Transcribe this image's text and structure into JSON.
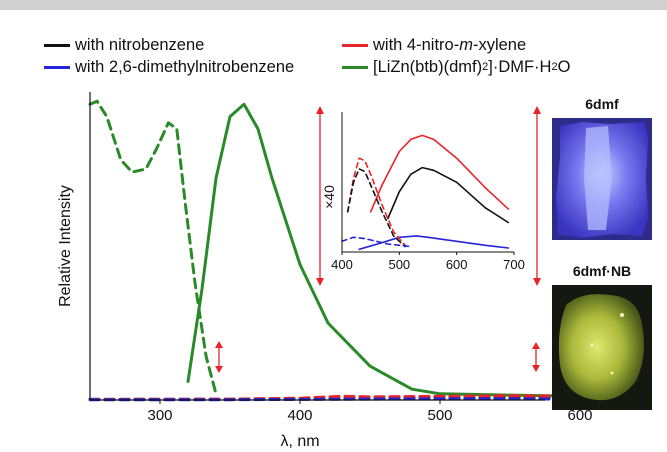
{
  "legend": [
    {
      "label_pre": "with nitrobenzene",
      "label_italic": "",
      "label_post": "",
      "color": "#111111"
    },
    {
      "label_pre": "with 4-nitro-",
      "label_italic": "m",
      "label_post": "-xylene",
      "color": "#e8232a"
    },
    {
      "label_pre": "with 2,6-dimethylnitrobenzene",
      "label_italic": "",
      "label_post": "",
      "color": "#2424d8"
    },
    {
      "label_pre": "[LiZn(btb)(dmf)",
      "sub1": "2",
      "mid": "]·DMF·H",
      "sub2": "2",
      "label_post": "O",
      "color": "#2a8a2a"
    }
  ],
  "photos": [
    {
      "label": "6dmf"
    },
    {
      "label": "6dmf·NB"
    }
  ],
  "colors": {
    "green": "#2a8a2a",
    "red": "#e8232a",
    "blue": "#2424d8",
    "black": "#111111"
  },
  "chart_data": [
    {
      "type": "line",
      "xlabel": "λ, nm",
      "ylabel": "Relative Intensity",
      "xlim": [
        250,
        650
      ],
      "ylim": [
        0,
        100
      ],
      "xticks": [
        300,
        400,
        500,
        600
      ],
      "grid": false,
      "series": [
        {
          "name": "[LiZn(btb)(dmf)2]·DMF·H2O emission",
          "color": "#2a8a2a",
          "dash": false,
          "x": [
            320,
            330,
            340,
            350,
            360,
            370,
            380,
            400,
            420,
            450,
            480,
            500,
            550,
            600,
            650
          ],
          "y": [
            6,
            36,
            72,
            92,
            96,
            88,
            72,
            44,
            25,
            11,
            3.5,
            2,
            1.6,
            1.2,
            1
          ]
        },
        {
          "name": "[LiZn(btb)(dmf)2]·DMF·H2O excitation",
          "color": "#2a8a2a",
          "dash": true,
          "x": [
            250,
            255,
            262,
            272,
            280,
            290,
            298,
            306,
            312,
            318,
            325,
            333,
            340
          ],
          "y": [
            96,
            97,
            92,
            78,
            74,
            75,
            82,
            90,
            88,
            64,
            38,
            14,
            2
          ]
        },
        {
          "name": "with nitrobenzene",
          "color": "#111111",
          "dash": true,
          "x": [
            250,
            350,
            400,
            450,
            500,
            550,
            600,
            650
          ],
          "y": [
            0.2,
            0.2,
            0.3,
            0.6,
            0.8,
            0.8,
            0.6,
            0.4
          ]
        },
        {
          "name": "with 4-nitro-m-xylene",
          "color": "#e8232a",
          "dash": true,
          "x": [
            250,
            350,
            400,
            430,
            450,
            500,
            550,
            600,
            650
          ],
          "y": [
            0.2,
            0.3,
            0.6,
            1.2,
            1.0,
            1.2,
            1.4,
            1.2,
            0.8
          ]
        },
        {
          "name": "with 2,6-dimethylnitrobenzene",
          "color": "#2424d8",
          "dash": true,
          "x": [
            250,
            350,
            400,
            450,
            500,
            550,
            600,
            650
          ],
          "y": [
            0.1,
            0.1,
            0.2,
            0.3,
            0.4,
            0.4,
            0.3,
            0.2
          ]
        }
      ]
    },
    {
      "type": "line",
      "inset": true,
      "ylabel": "×40",
      "xlim": [
        400,
        700
      ],
      "ylim": [
        0,
        100
      ],
      "xticks": [
        400,
        500,
        600,
        700
      ],
      "series": [
        {
          "name": "with 4-nitro-m-xylene emission",
          "color": "#e8232a",
          "dash": false,
          "x": [
            450,
            470,
            500,
            520,
            540,
            560,
            600,
            650,
            690
          ],
          "y": [
            30,
            50,
            75,
            84,
            87,
            84,
            70,
            48,
            32
          ]
        },
        {
          "name": "with nitrobenzene emission",
          "color": "#111111",
          "dash": false,
          "x": [
            480,
            500,
            520,
            540,
            560,
            600,
            650,
            690
          ],
          "y": [
            25,
            45,
            58,
            63,
            61,
            52,
            33,
            22
          ]
        },
        {
          "name": "with 2,6-dimethylnitrobenzene emission",
          "color": "#2424d8",
          "dash": false,
          "x": [
            430,
            470,
            500,
            530,
            550,
            600,
            650,
            690
          ],
          "y": [
            2,
            7,
            11,
            12,
            11,
            8,
            5,
            3
          ]
        },
        {
          "name": "with 4-nitro-m-xylene excitation",
          "color": "#e8232a",
          "dash": true,
          "x": [
            410,
            420,
            430,
            440,
            450,
            470,
            490,
            510
          ],
          "y": [
            30,
            55,
            70,
            68,
            58,
            35,
            15,
            5
          ]
        },
        {
          "name": "with nitrobenzene excitation",
          "color": "#111111",
          "dash": true,
          "x": [
            410,
            420,
            430,
            440,
            450,
            470,
            490,
            510
          ],
          "y": [
            30,
            52,
            62,
            60,
            50,
            30,
            12,
            4
          ]
        },
        {
          "name": "with 2,6-dimethylnitrobenzene excitation",
          "color": "#2424d8",
          "dash": true,
          "x": [
            400,
            420,
            440,
            460,
            480,
            500,
            520
          ],
          "y": [
            8,
            11,
            10,
            8,
            6,
            5,
            4
          ]
        }
      ]
    }
  ]
}
